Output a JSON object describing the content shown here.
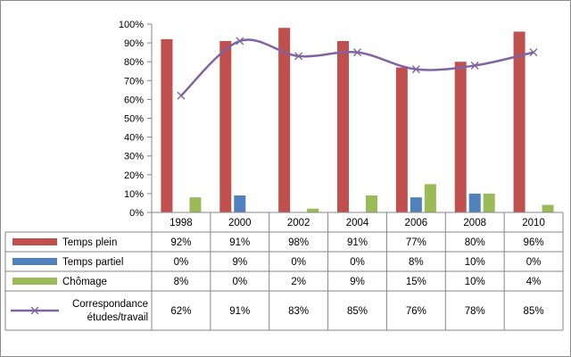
{
  "chart_data": {
    "type": "bar",
    "categories": [
      "1998",
      "2000",
      "2002",
      "2004",
      "2006",
      "2008",
      "2010"
    ],
    "series": [
      {
        "name": "Temps plein",
        "type": "bar",
        "color": "#C0504D",
        "values": [
          92,
          91,
          98,
          91,
          77,
          80,
          96
        ],
        "labels": [
          "92%",
          "91%",
          "98%",
          "91%",
          "77%",
          "80%",
          "96%"
        ]
      },
      {
        "name": "Temps partiel",
        "type": "bar",
        "color": "#4F81BD",
        "values": [
          0,
          9,
          0,
          0,
          8,
          10,
          0
        ],
        "labels": [
          "0%",
          "9%",
          "0%",
          "0%",
          "8%",
          "10%",
          "0%"
        ]
      },
      {
        "name": "Chômage",
        "type": "bar",
        "color": "#9BBB59",
        "values": [
          8,
          0,
          2,
          9,
          15,
          10,
          4
        ],
        "labels": [
          "8%",
          "0%",
          "2%",
          "9%",
          "15%",
          "10%",
          "4%"
        ]
      },
      {
        "name": "Correspondance études/travail",
        "name_lines": [
          "Correspondance",
          "études/travail"
        ],
        "type": "line",
        "color": "#8064A2",
        "marker": "x",
        "values": [
          62,
          91,
          83,
          85,
          76,
          78,
          85
        ],
        "labels": [
          "62%",
          "91%",
          "83%",
          "85%",
          "76%",
          "78%",
          "85%"
        ]
      }
    ],
    "yticks": [
      "0%",
      "10%",
      "20%",
      "30%",
      "40%",
      "50%",
      "60%",
      "70%",
      "80%",
      "90%",
      "100%"
    ],
    "ylim": [
      0,
      100
    ],
    "title": "",
    "xlabel": "",
    "ylabel": "",
    "grid": false,
    "legend": "data-table"
  }
}
